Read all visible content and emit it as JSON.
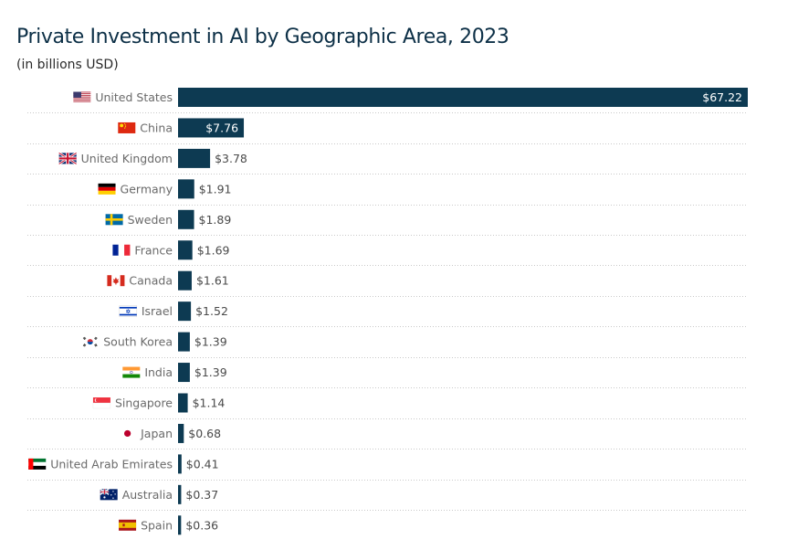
{
  "chart_data": {
    "type": "bar",
    "orientation": "horizontal",
    "title": "Private Investment in AI by Geographic Area, 2023",
    "subtitle": "(in billions USD)",
    "xlabel": "",
    "ylabel": "",
    "value_prefix": "$",
    "xlim": [
      0,
      67.22
    ],
    "grid": false,
    "bar_color": "#0d3a52",
    "categories": [
      "United States",
      "China",
      "United Kingdom",
      "Germany",
      "Sweden",
      "France",
      "Canada",
      "Israel",
      "South Korea",
      "India",
      "Singapore",
      "Japan",
      "United Arab Emirates",
      "Australia",
      "Spain"
    ],
    "values": [
      67.22,
      7.76,
      3.78,
      1.91,
      1.89,
      1.69,
      1.61,
      1.52,
      1.39,
      1.39,
      1.14,
      0.68,
      0.41,
      0.37,
      0.36
    ],
    "value_labels": [
      "$67.22",
      "$7.76",
      "$3.78",
      "$1.91",
      "$1.89",
      "$1.69",
      "$1.61",
      "$1.52",
      "$1.39",
      "$1.39",
      "$1.14",
      "$0.68",
      "$0.41",
      "$0.37",
      "$0.36"
    ],
    "flags": [
      "us-flag-icon",
      "china-flag-icon",
      "uk-flag-icon",
      "germany-flag-icon",
      "sweden-flag-icon",
      "france-flag-icon",
      "canada-flag-icon",
      "israel-flag-icon",
      "south-korea-flag-icon",
      "india-flag-icon",
      "singapore-flag-icon",
      "japan-flag-icon",
      "uae-flag-icon",
      "australia-flag-icon",
      "spain-flag-icon"
    ]
  }
}
